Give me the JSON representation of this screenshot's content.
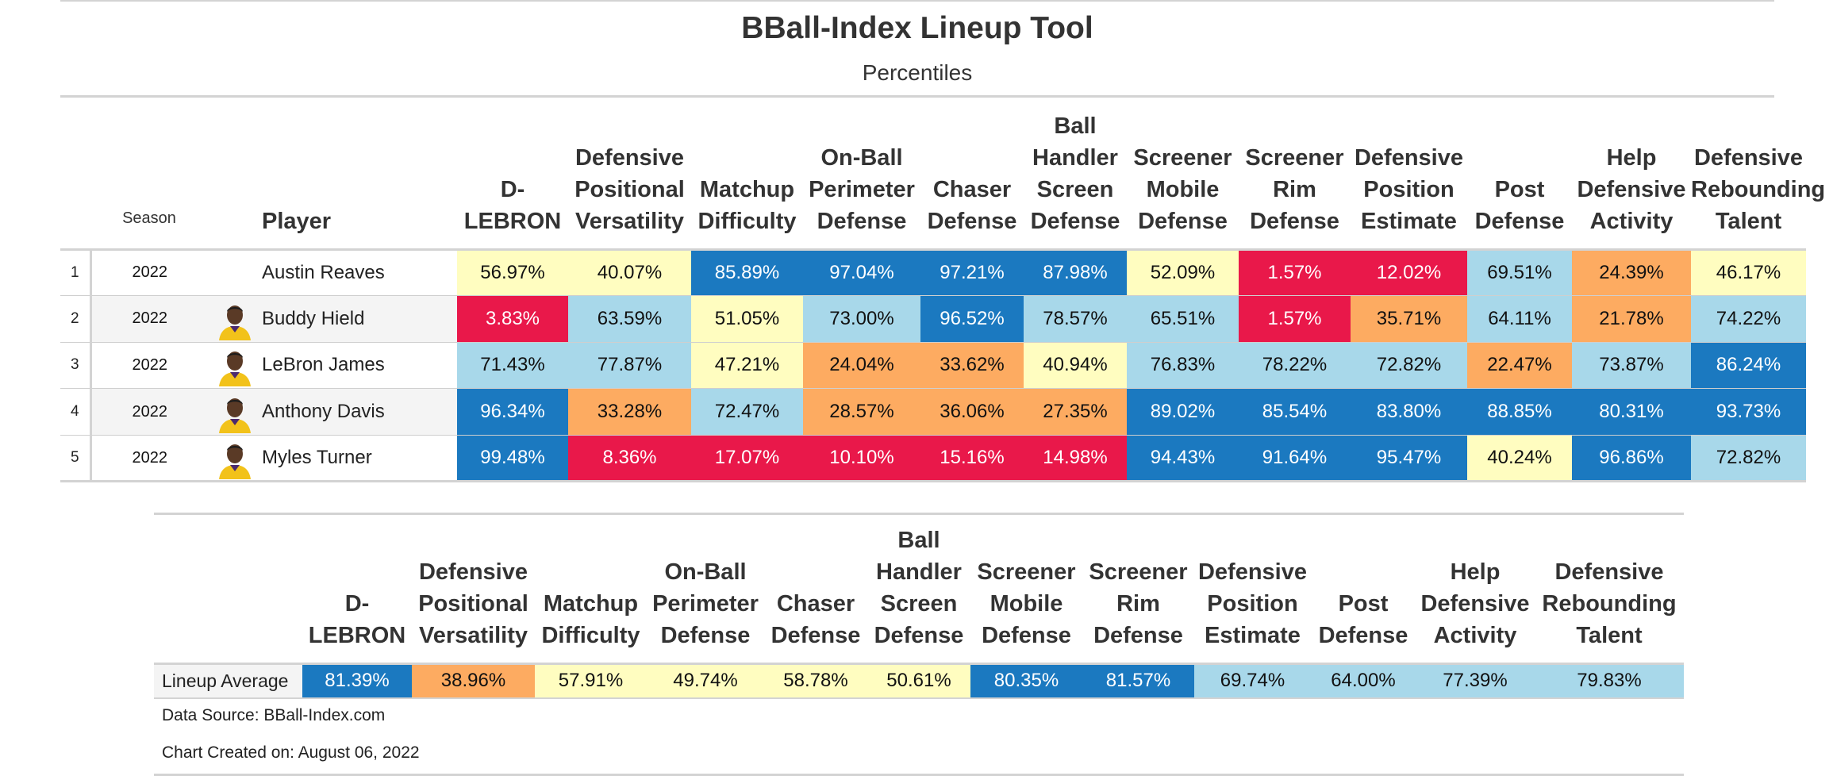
{
  "chart_data": {
    "type": "table",
    "title": "BBall-Index Lineup Tool",
    "subtitle": "Percentiles",
    "season_label": "Season",
    "player_label": "Player",
    "columns": [
      [
        "D-",
        "LEBRON"
      ],
      [
        "Defensive",
        "Positional",
        "Versatility"
      ],
      [
        "Matchup",
        "Difficulty"
      ],
      [
        "On-Ball",
        "Perimeter",
        "Defense"
      ],
      [
        "Chaser",
        "Defense"
      ],
      [
        "Ball",
        "Handler",
        "Screen",
        "Defense"
      ],
      [
        "Screener",
        "Mobile",
        "Defense"
      ],
      [
        "Screener",
        "Rim",
        "Defense"
      ],
      [
        "Defensive",
        "Position",
        "Estimate"
      ],
      [
        "Post",
        "Defense"
      ],
      [
        "Help",
        "Defensive",
        "Activity"
      ],
      [
        "Defensive",
        "Rebounding",
        "Talent"
      ]
    ],
    "rows": [
      {
        "rank": "1",
        "season": "2022",
        "player": "Austin Reaves",
        "headshot": "none",
        "values": [
          "56.97%",
          "40.07%",
          "85.89%",
          "97.04%",
          "97.21%",
          "87.98%",
          "52.09%",
          "1.57%",
          "12.02%",
          "69.51%",
          "24.39%",
          "46.17%"
        ]
      },
      {
        "rank": "2",
        "season": "2022",
        "player": "Buddy Hield",
        "headshot": "player-headshot",
        "values": [
          "3.83%",
          "63.59%",
          "51.05%",
          "73.00%",
          "96.52%",
          "78.57%",
          "65.51%",
          "1.57%",
          "35.71%",
          "64.11%",
          "21.78%",
          "74.22%"
        ]
      },
      {
        "rank": "3",
        "season": "2022",
        "player": "LeBron James",
        "headshot": "player-headshot",
        "values": [
          "71.43%",
          "77.87%",
          "47.21%",
          "24.04%",
          "33.62%",
          "40.94%",
          "76.83%",
          "78.22%",
          "72.82%",
          "22.47%",
          "73.87%",
          "86.24%"
        ]
      },
      {
        "rank": "4",
        "season": "2022",
        "player": "Anthony Davis",
        "headshot": "player-headshot",
        "values": [
          "96.34%",
          "33.28%",
          "72.47%",
          "28.57%",
          "36.06%",
          "27.35%",
          "89.02%",
          "85.54%",
          "83.80%",
          "88.85%",
          "80.31%",
          "93.73%"
        ]
      },
      {
        "rank": "5",
        "season": "2022",
        "player": "Myles Turner",
        "headshot": "player-headshot",
        "values": [
          "99.48%",
          "8.36%",
          "17.07%",
          "10.10%",
          "15.16%",
          "14.98%",
          "94.43%",
          "91.64%",
          "95.47%",
          "40.24%",
          "96.86%",
          "72.82%"
        ]
      }
    ],
    "lineup_average": {
      "label": "Lineup Average",
      "values": [
        "81.39%",
        "38.96%",
        "57.91%",
        "49.74%",
        "58.78%",
        "50.61%",
        "80.35%",
        "81.57%",
        "69.74%",
        "64.00%",
        "77.39%",
        "79.83%"
      ]
    },
    "color_scale": {
      "blue": "#1b79c0",
      "light_blue": "#a8d8ea",
      "yellow": "#fffdc0",
      "orange": "#fdab61",
      "red": "#e9184a"
    }
  },
  "footer": {
    "source": "Data Source: BBall-Index.com",
    "created": "Chart Created on: August 06, 2022"
  }
}
